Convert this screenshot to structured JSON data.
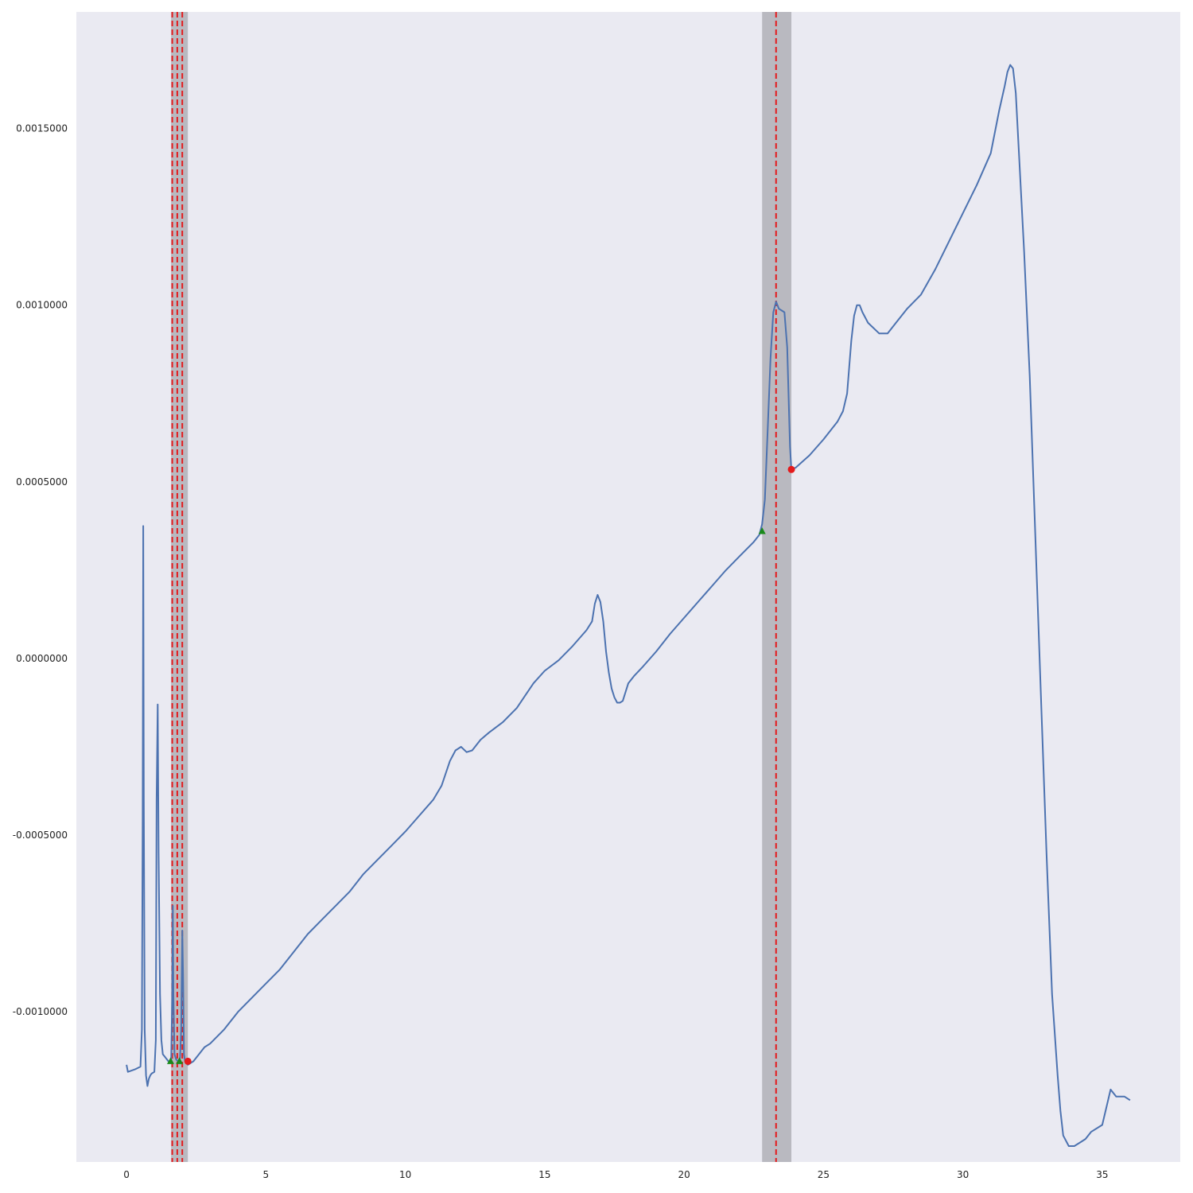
{
  "chart_data": {
    "type": "line",
    "title": "",
    "xlabel": "",
    "ylabel": "",
    "xlim": [
      -1.8,
      37.8
    ],
    "ylim": [
      -0.001425,
      0.00183
    ],
    "grid": false,
    "x_ticks": [
      0,
      5,
      10,
      15,
      20,
      25,
      30,
      35
    ],
    "x_tick_labels": [
      "0",
      "5",
      "10",
      "15",
      "20",
      "25",
      "30",
      "35"
    ],
    "y_ticks": [
      -0.001,
      -0.0005,
      0.0,
      0.0005,
      0.001,
      0.0015
    ],
    "y_tick_labels": [
      "-0.0010000",
      "-0.0005000",
      "0.0000000",
      "0.0005000",
      "0.0010000",
      "0.0015000"
    ],
    "colors": {
      "background": "#eaeaf2",
      "line": "#4c72b0",
      "span": "#9e9ea4",
      "vline": "#e41a1c",
      "start_marker": "#1a8a1a",
      "end_marker": "#e41a1c"
    },
    "series": [
      {
        "x": [
          0.0,
          0.05,
          0.3,
          0.5,
          0.55,
          0.58,
          0.6,
          0.62,
          0.65,
          0.7,
          0.75,
          0.8,
          0.85,
          0.9,
          1.0,
          1.05,
          1.08,
          1.12,
          1.15,
          1.2,
          1.25,
          1.3,
          1.4,
          1.5,
          1.6,
          1.64,
          1.66,
          1.68,
          1.72,
          1.78,
          1.85,
          1.92,
          1.96,
          2.0,
          2.03,
          2.06,
          2.1,
          2.2,
          2.4,
          2.6,
          2.8,
          3.0,
          3.5,
          4.0,
          4.5,
          5.0,
          5.5,
          6.0,
          6.5,
          7.0,
          7.5,
          8.0,
          8.5,
          9.0,
          9.5,
          10.0,
          10.5,
          11.0,
          11.3,
          11.6,
          11.8,
          12.0,
          12.2,
          12.4,
          12.7,
          13.0,
          13.5,
          14.0,
          14.3,
          14.6,
          15.0,
          15.5,
          16.0,
          16.5,
          16.7,
          16.8,
          16.9,
          17.0,
          17.1,
          17.2,
          17.3,
          17.4,
          17.5,
          17.6,
          17.7,
          17.8,
          18.0,
          18.2,
          18.5,
          19.0,
          19.5,
          20.0,
          20.5,
          21.0,
          21.5,
          22.0,
          22.5,
          22.7,
          22.8,
          22.9,
          23.0,
          23.1,
          23.2,
          23.3,
          23.4,
          23.5,
          23.6,
          23.7,
          23.8,
          23.85,
          24.0,
          24.5,
          25.0,
          25.5,
          25.7,
          25.85,
          26.0,
          26.1,
          26.2,
          26.3,
          26.4,
          26.6,
          27.0,
          27.3,
          27.6,
          28.0,
          28.5,
          29.0,
          29.5,
          30.0,
          30.5,
          31.0,
          31.3,
          31.5,
          31.6,
          31.7,
          31.8,
          31.9,
          32.0,
          32.2,
          32.4,
          32.6,
          32.8,
          33.0,
          33.2,
          33.4,
          33.5,
          33.6,
          33.8,
          34.0,
          34.2,
          34.4,
          34.6,
          35.0,
          35.3,
          35.5,
          35.8,
          36.0
        ],
        "y": [
          -0.00115,
          -0.00117,
          -0.001163,
          -0.001155,
          -0.00105,
          -0.00045,
          0.000375,
          -0.0004,
          -0.00105,
          -0.00118,
          -0.00121,
          -0.00119,
          -0.00118,
          -0.001175,
          -0.00117,
          -0.00108,
          -0.0004,
          -0.00013,
          -0.00055,
          -0.00095,
          -0.00108,
          -0.00112,
          -0.00113,
          -0.00114,
          -0.00114,
          -0.00095,
          -0.0007,
          -0.00095,
          -0.00112,
          -0.001135,
          -0.00114,
          -0.00113,
          -0.00105,
          -0.00077,
          -0.0009,
          -0.00112,
          -0.00114,
          -0.00115,
          -0.00114,
          -0.00112,
          -0.0011,
          -0.00109,
          -0.00105,
          -0.001,
          -0.00096,
          -0.00092,
          -0.00088,
          -0.00083,
          -0.00078,
          -0.00074,
          -0.0007,
          -0.00066,
          -0.00061,
          -0.00057,
          -0.00053,
          -0.00049,
          -0.000445,
          -0.0004,
          -0.00036,
          -0.00029,
          -0.00026,
          -0.00025,
          -0.000265,
          -0.00026,
          -0.00023,
          -0.00021,
          -0.00018,
          -0.00014,
          -0.000105,
          -7e-05,
          -3.5e-05,
          -5e-06,
          3.5e-05,
          8e-05,
          0.000105,
          0.000155,
          0.00018,
          0.00016,
          0.000105,
          2e-05,
          -4e-05,
          -8.5e-05,
          -0.00011,
          -0.000125,
          -0.000125,
          -0.00012,
          -7e-05,
          -5e-05,
          -2.5e-05,
          2e-05,
          7e-05,
          0.000115,
          0.00016,
          0.000205,
          0.00025,
          0.00029,
          0.00033,
          0.00035,
          0.00038,
          0.00045,
          0.00065,
          0.00085,
          0.00098,
          0.00101,
          0.00099,
          0.000985,
          0.00098,
          0.00088,
          0.0006,
          0.000535,
          0.00054,
          0.000575,
          0.00062,
          0.00067,
          0.0007,
          0.00075,
          0.0009,
          0.00097,
          0.001,
          0.001,
          0.00098,
          0.00095,
          0.00092,
          0.00092,
          0.00095,
          0.00099,
          0.00103,
          0.0011,
          0.00118,
          0.00126,
          0.00134,
          0.00143,
          0.00155,
          0.00162,
          0.00166,
          0.00168,
          0.00167,
          0.0016,
          0.00145,
          0.00115,
          0.0008,
          0.00035,
          -0.0001,
          -0.00055,
          -0.00095,
          -0.00118,
          -0.00128,
          -0.00135,
          -0.00138,
          -0.00138,
          -0.00137,
          -0.00136,
          -0.00134,
          -0.00132,
          -0.00122,
          -0.00124,
          -0.00124,
          -0.00125
        ]
      }
    ],
    "spans": [
      [
        1.6,
        2.2
      ],
      [
        22.8,
        23.85
      ]
    ],
    "vlines": [
      1.64,
      1.82,
      2.0,
      23.3
    ],
    "start_markers": [
      {
        "x": 1.58,
        "y": -0.00114
      },
      {
        "x": 1.9,
        "y": -0.00114
      },
      {
        "x": 22.8,
        "y": 0.00036
      }
    ],
    "end_markers": [
      {
        "x": 2.2,
        "y": -0.00114
      },
      {
        "x": 23.85,
        "y": 0.000535
      }
    ]
  }
}
